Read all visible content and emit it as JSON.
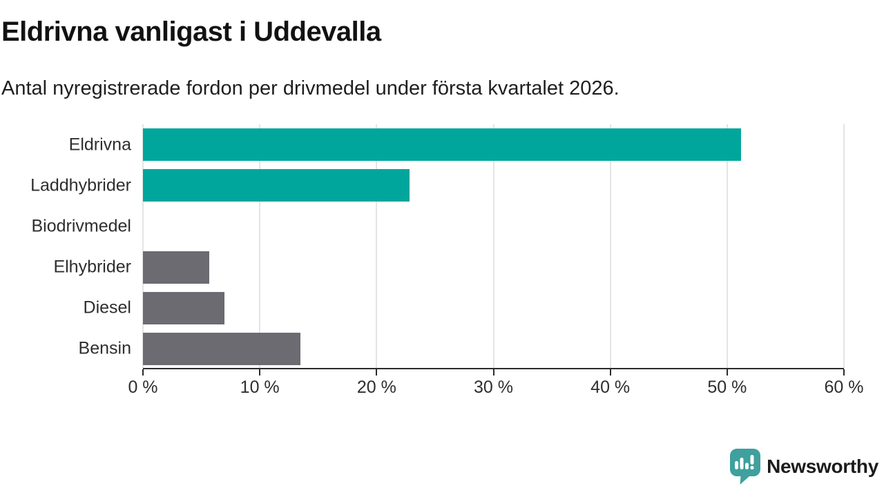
{
  "header": {
    "title": "Eldrivna vanligast i Uddevalla",
    "subtitle": "Antal nyregistrerade fordon per drivmedel under första kvartalet 2026."
  },
  "chart_data": {
    "type": "bar",
    "orientation": "horizontal",
    "title": "Eldrivna vanligast i Uddevalla",
    "subtitle": "Antal nyregistrerade fordon per drivmedel under första kvartalet 2026.",
    "categories": [
      "Eldrivna",
      "Laddhybrider",
      "Biodrivmedel",
      "Elhybrider",
      "Diesel",
      "Bensin"
    ],
    "values": [
      51.2,
      22.8,
      0,
      5.7,
      7.0,
      13.5
    ],
    "value_unit": "%",
    "xlim": [
      0,
      60
    ],
    "grid": true,
    "ticks": [
      {
        "value": 0,
        "label": "0 %"
      },
      {
        "value": 10,
        "label": "10 %"
      },
      {
        "value": 20,
        "label": "20 %"
      },
      {
        "value": 30,
        "label": "30 %"
      },
      {
        "value": 40,
        "label": "40 %"
      },
      {
        "value": 50,
        "label": "50 %"
      },
      {
        "value": 60,
        "label": "60 %"
      }
    ],
    "colors": {
      "highlight": "#00A69C",
      "default": "#6B6B71",
      "series": [
        "#00A69C",
        "#00A69C",
        "#6B6B71",
        "#6B6B71",
        "#6B6B71",
        "#6B6B71"
      ],
      "axis": "#2b2b2b",
      "gridline": "#e4e4e4"
    }
  },
  "branding": {
    "name": "Newsworthy",
    "color": "#3FA09D",
    "icon": "newsworthy-speech-bubble-chart-icon"
  }
}
